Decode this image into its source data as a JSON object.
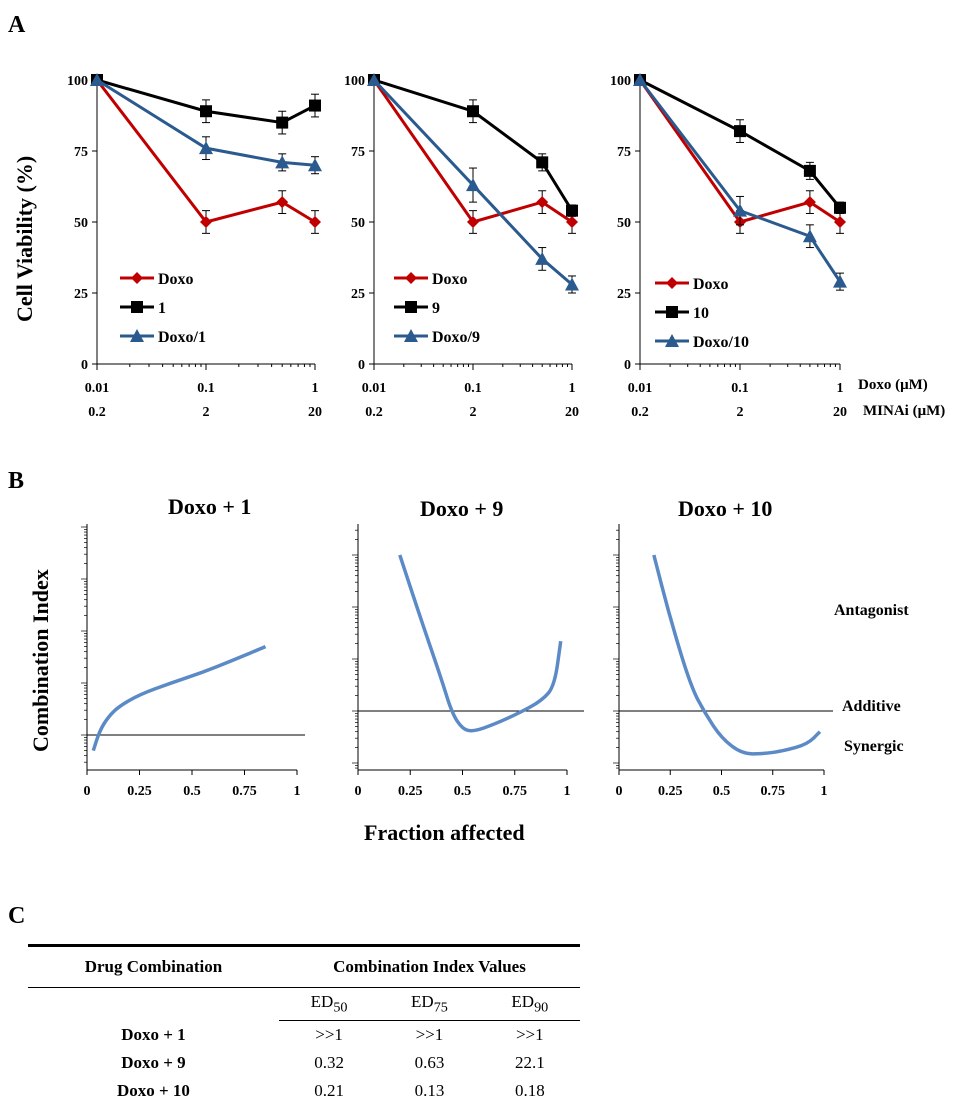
{
  "panels": {
    "a": "A",
    "b": "B",
    "c": "C"
  },
  "chart_data": [
    {
      "type": "line",
      "panel": "A",
      "ylabel": "Cell Viability (%)",
      "ylim": [
        0,
        100
      ],
      "yticks": [
        "0",
        "25",
        "50",
        "75",
        "100"
      ],
      "x_scale": "log",
      "x": [
        0.01,
        0.1,
        0.5,
        1
      ],
      "xticks_doxo": [
        "0.01",
        "0.1",
        "1"
      ],
      "xticks_minai": [
        "0.2",
        "2",
        "20"
      ],
      "series": [
        {
          "name": "Doxo",
          "color": "#c00000",
          "marker": "diamond",
          "values": [
            100,
            50,
            57,
            50
          ],
          "err": [
            0,
            4,
            4,
            4
          ]
        },
        {
          "name": "1",
          "color": "#000000",
          "marker": "square",
          "values": [
            100,
            89,
            85,
            91
          ],
          "err": [
            0,
            4,
            4,
            4
          ]
        },
        {
          "name": "Doxo/1",
          "color": "#2a5a8e",
          "marker": "triangle",
          "values": [
            100,
            76,
            71,
            70
          ],
          "err": [
            0,
            4,
            3,
            3
          ]
        }
      ]
    },
    {
      "type": "line",
      "panel": "A",
      "ylim": [
        0,
        100
      ],
      "yticks": [
        "0",
        "25",
        "50",
        "75",
        "100"
      ],
      "x_scale": "log",
      "x": [
        0.01,
        0.1,
        0.5,
        1
      ],
      "xticks_doxo": [
        "0.01",
        "0.1",
        "1"
      ],
      "xticks_minai": [
        "0.2",
        "2",
        "20"
      ],
      "series": [
        {
          "name": "Doxo",
          "color": "#c00000",
          "marker": "diamond",
          "values": [
            100,
            50,
            57,
            50
          ],
          "err": [
            0,
            4,
            4,
            4
          ]
        },
        {
          "name": "9",
          "color": "#000000",
          "marker": "square",
          "values": [
            100,
            89,
            71,
            54
          ],
          "err": [
            0,
            4,
            3,
            2
          ]
        },
        {
          "name": "Doxo/9",
          "color": "#2a5a8e",
          "marker": "triangle",
          "values": [
            100,
            63,
            37,
            28
          ],
          "err": [
            0,
            6,
            4,
            3
          ]
        }
      ]
    },
    {
      "type": "line",
      "panel": "A",
      "ylim": [
        0,
        100
      ],
      "yticks": [
        "0",
        "25",
        "50",
        "75",
        "100"
      ],
      "x_scale": "log",
      "x": [
        0.01,
        0.1,
        0.5,
        1
      ],
      "xticks_doxo": [
        "0.01",
        "0.1",
        "1"
      ],
      "xticks_minai": [
        "0.2",
        "2",
        "20"
      ],
      "series": [
        {
          "name": "Doxo",
          "color": "#c00000",
          "marker": "diamond",
          "values": [
            100,
            50,
            57,
            50
          ],
          "err": [
            0,
            4,
            4,
            4
          ]
        },
        {
          "name": "10",
          "color": "#000000",
          "marker": "square",
          "values": [
            100,
            82,
            68,
            55
          ],
          "err": [
            0,
            4,
            3,
            2
          ]
        },
        {
          "name": "Doxo/10",
          "color": "#2a5a8e",
          "marker": "triangle",
          "values": [
            100,
            54,
            45,
            29
          ],
          "err": [
            0,
            5,
            4,
            3
          ]
        }
      ]
    },
    {
      "type": "line",
      "panel": "B",
      "title": "Doxo + 1",
      "ylabel": "Combination Index",
      "xlabel": "Fraction affected",
      "xlim": [
        0,
        1
      ],
      "xticks": [
        "0",
        "0.25",
        "0.5",
        "0.75",
        "1"
      ],
      "additive_level": 1,
      "color": "#5b8ac7",
      "points": [
        [
          0.03,
          0.5
        ],
        [
          0.06,
          1.2
        ],
        [
          0.1,
          2.2
        ],
        [
          0.15,
          3.5
        ],
        [
          0.25,
          6
        ],
        [
          0.4,
          10
        ],
        [
          0.55,
          16
        ],
        [
          0.7,
          28
        ],
        [
          0.85,
          50
        ]
      ]
    },
    {
      "type": "line",
      "panel": "B",
      "title": "Doxo + 9",
      "xlim": [
        0,
        1
      ],
      "xticks": [
        "0",
        "0.25",
        "0.5",
        "0.75",
        "1"
      ],
      "additive_level": 1,
      "color": "#5b8ac7",
      "points": [
        [
          0.2,
          1000
        ],
        [
          0.3,
          60
        ],
        [
          0.4,
          4
        ],
        [
          0.45,
          0.9
        ],
        [
          0.5,
          0.45
        ],
        [
          0.55,
          0.4
        ],
        [
          0.65,
          0.55
        ],
        [
          0.78,
          0.95
        ],
        [
          0.88,
          1.6
        ],
        [
          0.94,
          3
        ],
        [
          0.97,
          22
        ]
      ]
    },
    {
      "type": "line",
      "panel": "B",
      "title": "Doxo + 10",
      "xlim": [
        0,
        1
      ],
      "xticks": [
        "0",
        "0.25",
        "0.5",
        "0.75",
        "1"
      ],
      "additive_level": 1,
      "color": "#5b8ac7",
      "points": [
        [
          0.17,
          1000
        ],
        [
          0.25,
          60
        ],
        [
          0.35,
          3
        ],
        [
          0.42,
          0.9
        ],
        [
          0.5,
          0.3
        ],
        [
          0.6,
          0.15
        ],
        [
          0.7,
          0.15
        ],
        [
          0.8,
          0.17
        ],
        [
          0.92,
          0.23
        ],
        [
          0.98,
          0.4
        ]
      ]
    }
  ],
  "panelB": {
    "ylabel": "Combination Index",
    "xlabel": "Fraction affected",
    "regions": {
      "antagonist": "Antagonist",
      "additive": "Additive",
      "synergic": "Synergic"
    }
  },
  "axisrows": {
    "doxo": "Doxo (μM)",
    "minai": "MINAi (μM)"
  },
  "table": {
    "col_drug": "Drug Combination",
    "col_ci": "Combination Index Values",
    "ed_labels": [
      {
        "base": "ED",
        "sub": "50"
      },
      {
        "base": "ED",
        "sub": "75"
      },
      {
        "base": "ED",
        "sub": "90"
      }
    ],
    "rows": [
      {
        "name": "Doxo + 1",
        "values": [
          ">>1",
          ">>1",
          ">>1"
        ]
      },
      {
        "name": "Doxo + 9",
        "values": [
          "0.32",
          "0.63",
          "22.1"
        ]
      },
      {
        "name": "Doxo + 10",
        "values": [
          "0.21",
          "0.13",
          "0.18"
        ]
      }
    ]
  }
}
